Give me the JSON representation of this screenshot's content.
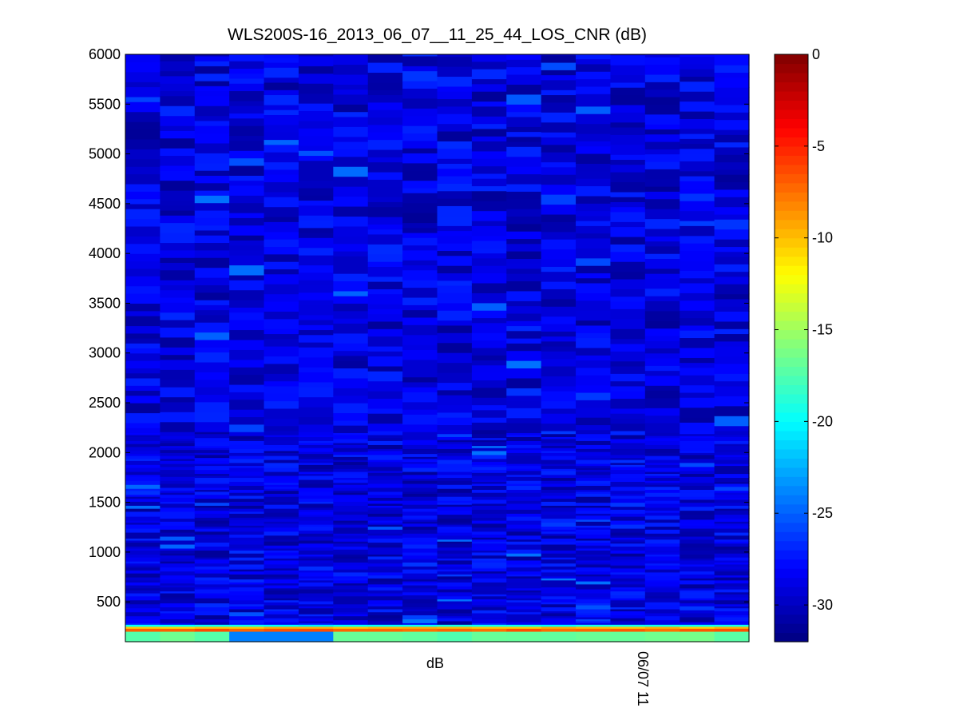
{
  "chart_data": {
    "type": "heatmap",
    "title": "WLS200S-16_2013_06_07__11_25_44_LOS_CNR (dB)",
    "xlabel": "dB",
    "x_tick_labels": [
      "06/07 11"
    ],
    "ylabel": "",
    "y_ticks": [
      500,
      1000,
      1500,
      2000,
      2500,
      3000,
      3500,
      4000,
      4500,
      5000,
      5500,
      6000
    ],
    "ylim": [
      100,
      6000
    ],
    "columns": 18,
    "rows": 60,
    "row_height_units": 100,
    "near_ground_rows": [
      {
        "range": [
          250,
          270
        ],
        "typical_value": -20
      },
      {
        "range": [
          230,
          250
        ],
        "typical_value": -10
      },
      {
        "range": [
          200,
          230
        ],
        "typical_value": -7
      },
      {
        "range": [
          100,
          200
        ],
        "typical_value": -17
      }
    ],
    "typical_value_above_300": -29,
    "value_spread_above_300": [
      -32,
      -24
    ],
    "colorbar": {
      "colormap": "jet",
      "range": [
        -32,
        0
      ],
      "ticks": [
        0,
        -5,
        -10,
        -15,
        -20,
        -25,
        -30
      ]
    }
  }
}
